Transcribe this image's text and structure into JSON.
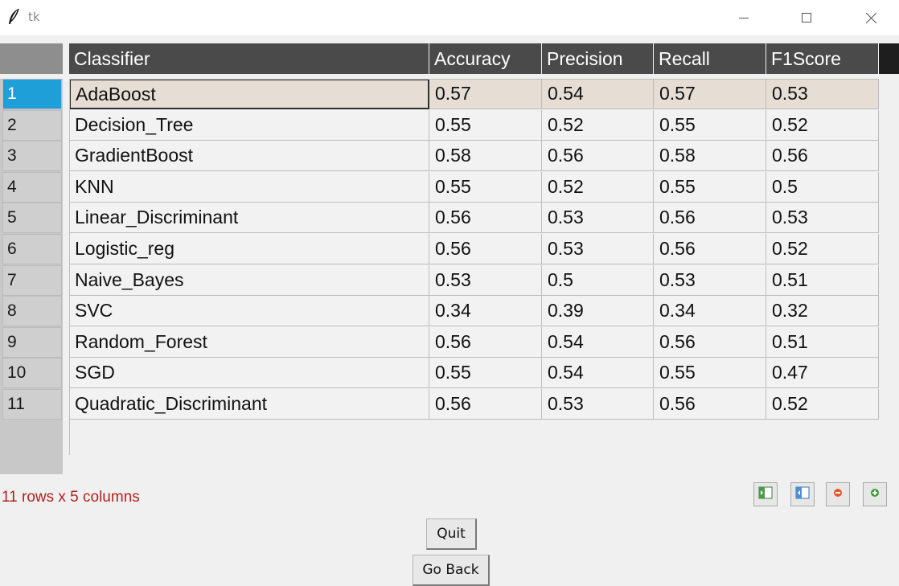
{
  "window": {
    "title": "tk",
    "controls": [
      "minimize-icon",
      "maximize-icon",
      "close-icon"
    ]
  },
  "table": {
    "columns": [
      "Classifier",
      "Accuracy",
      "Precision",
      "Recall",
      "F1Score"
    ],
    "row_indices": [
      "1",
      "2",
      "3",
      "4",
      "5",
      "6",
      "7",
      "8",
      "9",
      "10",
      "11"
    ],
    "rows": [
      [
        "AdaBoost",
        "0.57",
        "0.54",
        "0.57",
        "0.53"
      ],
      [
        "Decision_Tree",
        "0.55",
        "0.52",
        "0.55",
        "0.52"
      ],
      [
        "GradientBoost",
        "0.58",
        "0.56",
        "0.58",
        "0.56"
      ],
      [
        "KNN",
        "0.55",
        "0.52",
        "0.55",
        "0.5"
      ],
      [
        "Linear_Discriminant",
        "0.56",
        "0.53",
        "0.56",
        "0.53"
      ],
      [
        "Logistic_reg",
        "0.56",
        "0.53",
        "0.56",
        "0.52"
      ],
      [
        "Naive_Bayes",
        "0.53",
        "0.5",
        "0.53",
        "0.51"
      ],
      [
        "SVC",
        "0.34",
        "0.39",
        "0.34",
        "0.32"
      ],
      [
        "Random_Forest",
        "0.56",
        "0.54",
        "0.56",
        "0.51"
      ],
      [
        "SGD",
        "0.55",
        "0.54",
        "0.55",
        "0.47"
      ],
      [
        "Quadratic_Discriminant",
        "0.56",
        "0.53",
        "0.56",
        "0.52"
      ]
    ],
    "selected_row": 0,
    "colors": {
      "header_bg": "#4a4a4a",
      "selected_index_bg": "#1e9fd8",
      "selected_row_bg": "#e6ded4",
      "status_text": "#b22222"
    }
  },
  "status": {
    "text": "11 rows x 5 columns"
  },
  "toolbar": {
    "icons": [
      "shrink-columns-icon",
      "expand-columns-icon",
      "zoom-out-icon",
      "zoom-in-icon"
    ]
  },
  "buttons": {
    "quit_label": "Quit",
    "go_back_label": "Go Back"
  }
}
